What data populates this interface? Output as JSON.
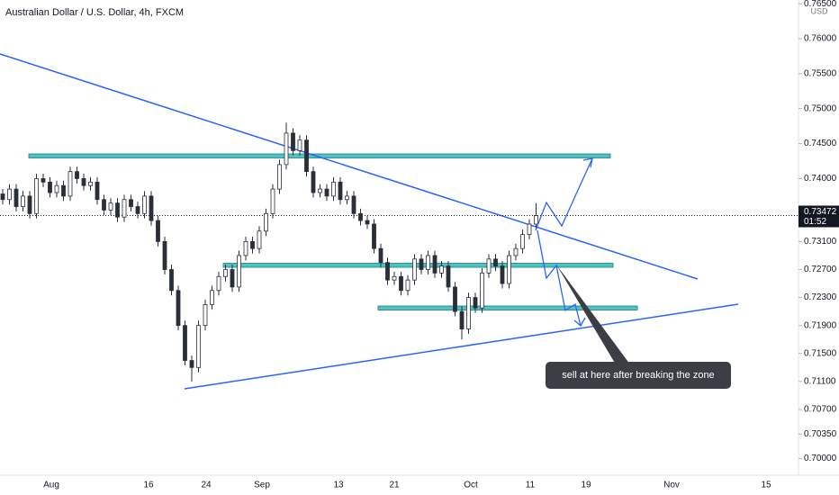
{
  "chart_data": {
    "type": "candlestick",
    "title": "Australian Dollar / U.S. Dollar, 4h, FXCM",
    "currency": "USD",
    "ylim": [
      0.6976,
      0.76553
    ],
    "yticks": [
      {
        "value": 0.765,
        "label": "0.76500"
      },
      {
        "value": 0.76,
        "label": "0.76000"
      },
      {
        "value": 0.755,
        "label": "0.75500"
      },
      {
        "value": 0.75,
        "label": "0.75000"
      },
      {
        "value": 0.745,
        "label": "0.74500"
      },
      {
        "value": 0.74,
        "label": "0.74000"
      },
      {
        "value": 0.731,
        "label": "0.73100"
      },
      {
        "value": 0.727,
        "label": "0.72700"
      },
      {
        "value": 0.723,
        "label": "0.72300"
      },
      {
        "value": 0.719,
        "label": "0.71900"
      },
      {
        "value": 0.715,
        "label": "0.71500"
      },
      {
        "value": 0.711,
        "label": "0.71100"
      },
      {
        "value": 0.707,
        "label": "0.70700"
      },
      {
        "value": 0.7035,
        "label": "0.70350"
      },
      {
        "value": 0.7,
        "label": "0.70000"
      }
    ],
    "x_labels": [
      "Aug",
      "16",
      "24",
      "Sep",
      "13",
      "21",
      "Oct",
      "11",
      "19",
      "Nov",
      "15"
    ],
    "last_price": 0.73472,
    "countdown": "01:52",
    "annotation": "sell at here after breaking the zone",
    "color": "#2a2e39",
    "open": [
      0.7378,
      0.737,
      0.7385,
      0.736,
      0.7375,
      0.735,
      0.74,
      0.7395,
      0.738,
      0.739,
      0.7375,
      0.741,
      0.74,
      0.739,
      0.7395,
      0.737,
      0.7355,
      0.7365,
      0.7345,
      0.737,
      0.736,
      0.735,
      0.7375,
      0.734,
      0.731,
      0.727,
      0.724,
      0.719,
      0.714,
      0.713,
      0.719,
      0.722,
      0.724,
      0.726,
      0.727,
      0.7245,
      0.729,
      0.731,
      0.73,
      0.7325,
      0.735,
      0.7385,
      0.742,
      0.7465,
      0.744,
      0.7455,
      0.741,
      0.738,
      0.7385,
      0.7375,
      0.7395,
      0.737,
      0.7375,
      0.735,
      0.734,
      0.7335,
      0.73,
      0.728,
      0.7255,
      0.726,
      0.724,
      0.7255,
      0.7285,
      0.727,
      0.729,
      0.7265,
      0.7275,
      0.7245,
      0.721,
      0.7185,
      0.723,
      0.7215,
      0.7265,
      0.7285,
      0.7275,
      0.725,
      0.729,
      0.73,
      0.732,
      0.7335
    ],
    "high": [
      0.7385,
      0.7392,
      0.7392,
      0.7382,
      0.7382,
      0.7407,
      0.7407,
      0.7402,
      0.7397,
      0.7397,
      0.7417,
      0.7417,
      0.7407,
      0.7402,
      0.7402,
      0.7377,
      0.7372,
      0.7372,
      0.7377,
      0.7377,
      0.7367,
      0.7382,
      0.7382,
      0.7347,
      0.7317,
      0.7277,
      0.7247,
      0.7197,
      0.7147,
      0.7197,
      0.7227,
      0.7247,
      0.7267,
      0.7277,
      0.7277,
      0.7297,
      0.7317,
      0.7317,
      0.7332,
      0.7357,
      0.7392,
      0.7427,
      0.748,
      0.7472,
      0.7462,
      0.7462,
      0.7417,
      0.7392,
      0.7392,
      0.7402,
      0.7402,
      0.7382,
      0.7382,
      0.7357,
      0.7347,
      0.7342,
      0.7307,
      0.7287,
      0.7267,
      0.7267,
      0.7262,
      0.7292,
      0.7292,
      0.7297,
      0.7297,
      0.7282,
      0.7282,
      0.7252,
      0.7217,
      0.7237,
      0.7237,
      0.7272,
      0.7292,
      0.7292,
      0.7282,
      0.7297,
      0.7307,
      0.7327,
      0.7342,
      0.7365
    ],
    "low": [
      0.7363,
      0.7363,
      0.7353,
      0.7353,
      0.7343,
      0.7343,
      0.7388,
      0.7373,
      0.7373,
      0.7368,
      0.7368,
      0.7393,
      0.7383,
      0.7383,
      0.7363,
      0.7348,
      0.7348,
      0.7338,
      0.7338,
      0.7353,
      0.7343,
      0.7343,
      0.7333,
      0.7303,
      0.7263,
      0.7233,
      0.7183,
      0.7133,
      0.711,
      0.7123,
      0.7183,
      0.7213,
      0.7233,
      0.7253,
      0.7238,
      0.7238,
      0.7283,
      0.7293,
      0.7293,
      0.7318,
      0.7343,
      0.7378,
      0.7413,
      0.7433,
      0.7433,
      0.7403,
      0.7373,
      0.7373,
      0.7368,
      0.7368,
      0.7363,
      0.7363,
      0.7343,
      0.7333,
      0.7328,
      0.7293,
      0.7273,
      0.7248,
      0.7248,
      0.7233,
      0.7233,
      0.7248,
      0.7263,
      0.7263,
      0.7258,
      0.7258,
      0.7238,
      0.7203,
      0.717,
      0.7178,
      0.7208,
      0.7208,
      0.7258,
      0.7268,
      0.7243,
      0.7243,
      0.7283,
      0.7293,
      0.7313,
      0.7328
    ],
    "close": [
      0.737,
      0.7385,
      0.736,
      0.7375,
      0.735,
      0.74,
      0.7395,
      0.738,
      0.739,
      0.7375,
      0.741,
      0.74,
      0.739,
      0.7395,
      0.737,
      0.7355,
      0.7365,
      0.7345,
      0.737,
      0.736,
      0.735,
      0.7375,
      0.734,
      0.731,
      0.727,
      0.724,
      0.719,
      0.714,
      0.713,
      0.719,
      0.722,
      0.724,
      0.726,
      0.727,
      0.7245,
      0.729,
      0.731,
      0.73,
      0.7325,
      0.735,
      0.7385,
      0.742,
      0.7465,
      0.744,
      0.7455,
      0.741,
      0.738,
      0.7385,
      0.7375,
      0.7395,
      0.737,
      0.7375,
      0.735,
      0.734,
      0.7335,
      0.73,
      0.728,
      0.7255,
      0.726,
      0.724,
      0.7255,
      0.7285,
      0.727,
      0.729,
      0.7265,
      0.7275,
      0.7245,
      0.721,
      0.7185,
      0.723,
      0.7215,
      0.7265,
      0.7285,
      0.7275,
      0.725,
      0.729,
      0.73,
      0.732,
      0.7335,
      0.7347
    ]
  }
}
